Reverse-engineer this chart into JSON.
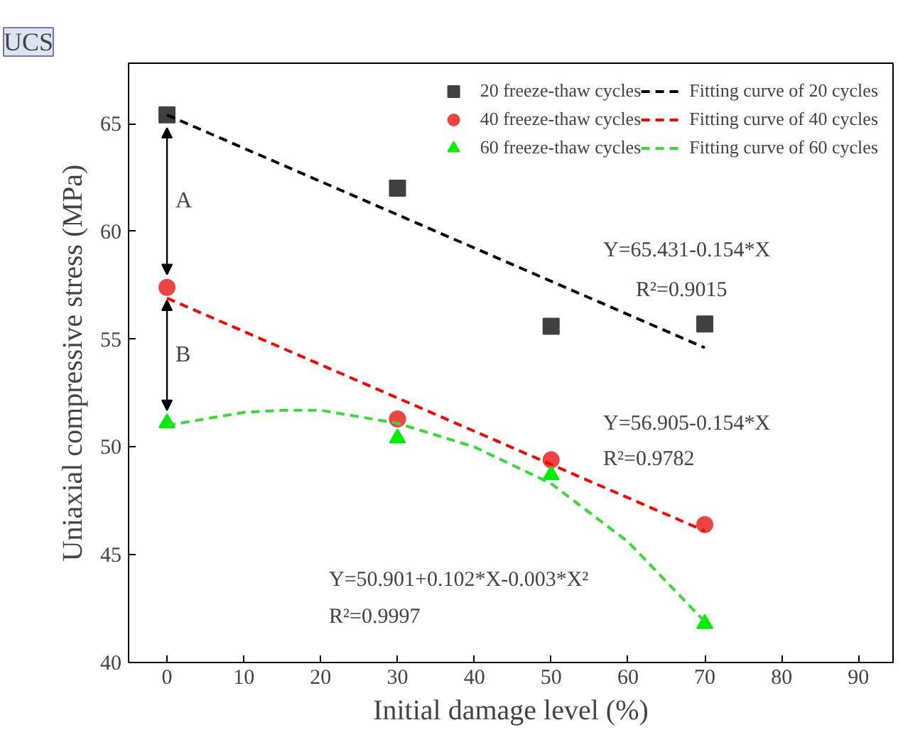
{
  "chart_data": {
    "type": "scatter",
    "xlabel": "Initial damage level (%)",
    "ylabel": "Uniaxial compressive stress (MPa)",
    "xlim": [
      -5,
      94.5
    ],
    "ylim": [
      40,
      67.8
    ],
    "xticks": [
      0,
      10,
      20,
      30,
      40,
      50,
      60,
      70,
      80,
      90
    ],
    "yticks": [
      40,
      45,
      50,
      55,
      60,
      65
    ],
    "grid": false,
    "legend": "top right",
    "series": [
      {
        "name": "20 freeze-thaw cycles",
        "marker": "square",
        "color": "#404040",
        "x": [
          0,
          30,
          50,
          70
        ],
        "values": [
          65.4,
          62.0,
          55.6,
          55.7
        ]
      },
      {
        "name": "Fitting curve of 20 cycles",
        "type": "line",
        "line_style": "dashed",
        "color": "#000000",
        "x": [
          0,
          70
        ],
        "values": [
          65.4,
          54.6
        ]
      },
      {
        "name": "40 freeze-thaw cycles",
        "marker": "circle",
        "color": "#ee4444",
        "x": [
          0,
          30,
          50,
          70
        ],
        "values": [
          57.4,
          51.3,
          49.4,
          46.4
        ]
      },
      {
        "name": "Fitting curve of 40 cycles",
        "type": "line",
        "line_style": "dashed",
        "color": "#ff0000",
        "x": [
          0,
          70
        ],
        "values": [
          56.9,
          46.1
        ]
      },
      {
        "name": "60 freeze-thaw cycles",
        "marker": "triangle",
        "color": "#00ee00",
        "x": [
          0,
          30,
          50,
          70
        ],
        "values": [
          51.1,
          50.4,
          48.7,
          41.8
        ]
      },
      {
        "name": "Fitting curve of 60 cycles",
        "type": "line",
        "line_style": "dashed",
        "color": "#33dd33",
        "x": [
          0,
          10,
          15,
          20,
          30,
          40,
          50,
          60,
          70
        ],
        "values": [
          51.0,
          51.6,
          51.7,
          51.7,
          51.1,
          50.0,
          48.3,
          45.6,
          41.9
        ]
      }
    ],
    "annotations": [
      "UCS",
      "A",
      "B",
      "Y=65.431-0.154*X",
      "R²=0.9015",
      "Y=56.905-0.154*X",
      "R²=0.9782",
      "Y=50.901+0.102*X-0.003*X²",
      "R²=0.9997"
    ]
  }
}
